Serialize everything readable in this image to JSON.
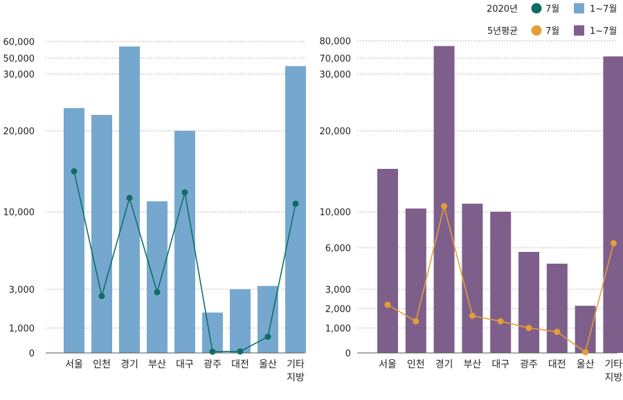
{
  "chart_data": [
    {
      "type": "bar",
      "categories": [
        "서울",
        "인천",
        "경기",
        "부산",
        "대구",
        "광주",
        "대전",
        "울산",
        "기타\n지방"
      ],
      "series": [
        {
          "name": "1~7월",
          "kind": "bar",
          "color": "#76a8cf",
          "values": [
            24000,
            22800,
            57000,
            11300,
            20000,
            1800,
            3000,
            3300,
            40000
          ]
        },
        {
          "name": "7월",
          "kind": "line",
          "color": "#0e6d66",
          "values": [
            15000,
            2650,
            11700,
            2850,
            12400,
            50,
            60,
            650,
            11000
          ]
        }
      ],
      "y_ticks": [
        0,
        1000,
        3000,
        10000,
        20000,
        30000,
        50000,
        60000
      ],
      "y_tick_labels": [
        "0",
        "1,000",
        "3,000",
        "10,000",
        "20,000",
        "30,000",
        "50,000",
        "60,000"
      ],
      "ylim": [
        0,
        60000
      ],
      "scale": "piecewise (broken axis)"
    },
    {
      "type": "bar",
      "categories": [
        "서울",
        "인천",
        "경기",
        "부산",
        "대구",
        "광주",
        "대전",
        "울산",
        "기타\n지방"
      ],
      "series": [
        {
          "name": "1~7월",
          "kind": "bar",
          "color": "#7e5f8c",
          "values": [
            15300,
            10400,
            77000,
            11000,
            10000,
            5700,
            4850,
            2150,
            71000
          ]
        },
        {
          "name": "7월",
          "kind": "line",
          "color": "#e59e35",
          "values": [
            2200,
            1350,
            10700,
            1630,
            1350,
            1000,
            850,
            30,
            6500
          ]
        }
      ],
      "y_ticks": [
        0,
        1000,
        2000,
        3000,
        6000,
        10000,
        20000,
        30000,
        70000,
        80000
      ],
      "y_tick_labels": [
        "0",
        "1,000",
        "2,000",
        "3,000",
        "6,000",
        "10,000",
        "20,000",
        "30,000",
        "70,000",
        "80,000"
      ],
      "ylim": [
        0,
        80000
      ],
      "scale": "piecewise (broken axis)"
    }
  ],
  "legend": {
    "rows": [
      {
        "title": "2020년",
        "line_label": "7월",
        "line_color": "#0e6d66",
        "bar_label": "1~7월",
        "bar_color": "#76a8cf"
      },
      {
        "title": "5년평균",
        "line_label": "7월",
        "line_color": "#e59e35",
        "bar_label": "1~7월",
        "bar_color": "#7e5f8c"
      }
    ]
  }
}
